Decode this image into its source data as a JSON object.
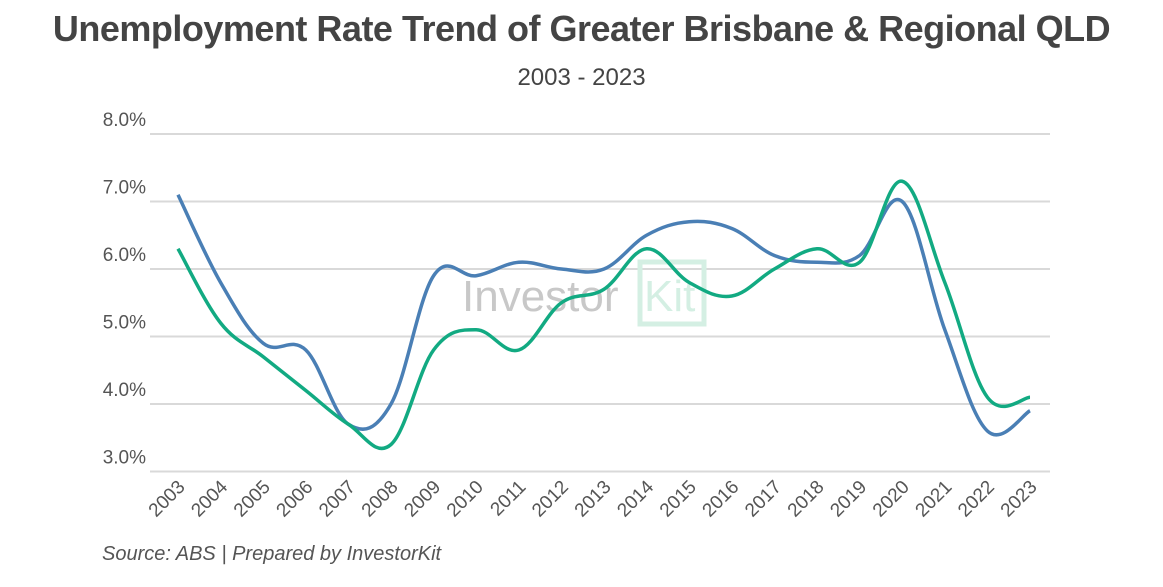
{
  "title": "Unemployment Rate Trend of Greater Brisbane & Regional QLD",
  "subtitle": "2003 - 2023",
  "source": "Source: ABS | Prepared by InvestorKit",
  "watermark": "InvestorKit",
  "chart_data": {
    "type": "line",
    "title": "Unemployment Rate Trend of Greater Brisbane & Regional QLD",
    "subtitle": "2003 - 2023",
    "x": [
      "2003",
      "2004",
      "2005",
      "2006",
      "2007",
      "2008",
      "2009",
      "2010",
      "2011",
      "2012",
      "2013",
      "2014",
      "2015",
      "2016",
      "2017",
      "2018",
      "2019",
      "2020",
      "2021",
      "2022",
      "2023"
    ],
    "ylim": [
      3.0,
      8.0
    ],
    "yticks": [
      "3.0%",
      "4.0%",
      "5.0%",
      "6.0%",
      "7.0%",
      "8.0%"
    ],
    "grid": true,
    "legend": "none",
    "smooth": true,
    "series": [
      {
        "color": "#4a7fb5",
        "values": [
          7.1,
          5.8,
          4.9,
          4.8,
          3.7,
          4.0,
          5.9,
          5.9,
          6.1,
          6.0,
          6.0,
          6.5,
          6.7,
          6.6,
          6.2,
          6.1,
          6.2,
          7.0,
          5.1,
          3.6,
          3.9
        ]
      },
      {
        "color": "#12aa82",
        "values": [
          6.3,
          5.2,
          4.7,
          4.2,
          3.7,
          3.4,
          4.8,
          5.1,
          4.8,
          5.5,
          5.7,
          6.3,
          5.8,
          5.6,
          6.0,
          6.3,
          6.1,
          7.3,
          5.8,
          4.1,
          4.1
        ]
      }
    ]
  }
}
